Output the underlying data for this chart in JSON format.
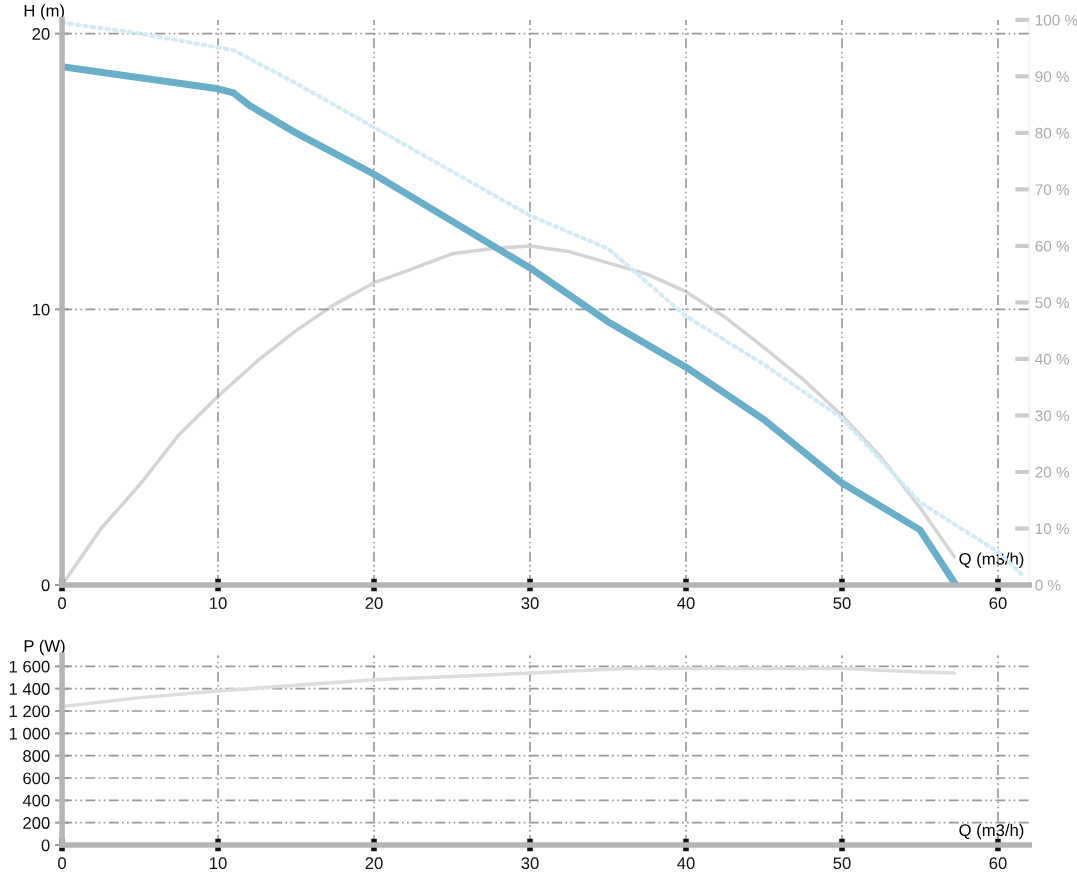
{
  "chart_data": [
    {
      "type": "line",
      "xlabel": "Q (m3/h)",
      "ylabel": "H (m)",
      "xlim": [
        0,
        62
      ],
      "xticks": [
        0,
        10,
        20,
        30,
        40,
        50,
        60
      ],
      "ylim": [
        0,
        20.5
      ],
      "yticks": [
        0,
        10,
        20
      ],
      "y2lim": [
        0,
        100
      ],
      "y2ticks": [
        {
          "value": 0,
          "label": "0 %"
        },
        {
          "value": 10,
          "label": "10 %"
        },
        {
          "value": 20,
          "label": "20 %"
        },
        {
          "value": 30,
          "label": "30 %"
        },
        {
          "value": 40,
          "label": "40 %"
        },
        {
          "value": 50,
          "label": "50 %"
        },
        {
          "value": 60,
          "label": "60 %"
        },
        {
          "value": 70,
          "label": "70 %"
        },
        {
          "value": 80,
          "label": "80 %"
        },
        {
          "value": 90,
          "label": "90 %"
        },
        {
          "value": 100,
          "label": "100 %"
        }
      ],
      "grid": true,
      "series": [
        {
          "color": "#d4ebf5",
          "line_style": "dotted",
          "x": [
            0,
            5,
            10,
            11,
            15,
            20,
            25,
            30,
            35,
            40,
            45,
            50,
            55,
            60,
            61.5
          ],
          "values": [
            20.4,
            20.0,
            19.5,
            19.4,
            18.2,
            16.6,
            15.0,
            13.4,
            12.2,
            9.75,
            8.0,
            6.05,
            3.0,
            1.2,
            0.4
          ]
        },
        {
          "color": "#d4d4d4",
          "axis": "y2",
          "x": [
            0,
            2.5,
            5,
            7.5,
            10,
            12.5,
            15,
            17.5,
            20,
            22.5,
            25,
            27.5,
            30,
            32.5,
            35,
            37.5,
            40,
            42.5,
            45,
            47.5,
            50,
            52.5,
            55,
            57.2
          ],
          "values": [
            0,
            10,
            17.8,
            26.6,
            33.4,
            39.6,
            45,
            49.7,
            53.5,
            56,
            58.6,
            59.5,
            60,
            59,
            57,
            55,
            51.9,
            47.4,
            42,
            36.4,
            30,
            22.6,
            13.7,
            5
          ]
        },
        {
          "color": "#6aafca",
          "x": [
            0,
            5,
            10,
            11,
            12,
            15,
            20,
            25,
            30,
            35,
            40,
            45,
            50,
            55,
            57.3
          ],
          "values": [
            18.8,
            18.4,
            18.0,
            17.85,
            17.4,
            16.4,
            14.9,
            13.2,
            11.5,
            9.55,
            7.9,
            6.0,
            3.7,
            2.0,
            0
          ]
        }
      ]
    },
    {
      "type": "line",
      "xlabel": "Q (m3/h)",
      "ylabel": "P (W)",
      "xlim": [
        0,
        62
      ],
      "xticks": [
        0,
        10,
        20,
        30,
        40,
        50,
        60
      ],
      "ylim": [
        0,
        1700
      ],
      "yticks": [
        0,
        200,
        400,
        600,
        800,
        {
          "value": 1000,
          "label": "1 000"
        },
        {
          "value": 1200,
          "label": "1 200"
        },
        {
          "value": 1400,
          "label": "1 400"
        },
        {
          "value": 1600,
          "label": "1 600"
        }
      ],
      "grid": true,
      "series": [
        {
          "color": "#dddddd",
          "x": [
            0,
            5,
            10,
            15,
            20,
            25,
            30,
            36,
            40,
            50,
            55,
            57.2
          ],
          "values": [
            1240,
            1320,
            1380,
            1430,
            1480,
            1510,
            1540,
            1580,
            1580,
            1580,
            1550,
            1540
          ]
        }
      ]
    }
  ]
}
